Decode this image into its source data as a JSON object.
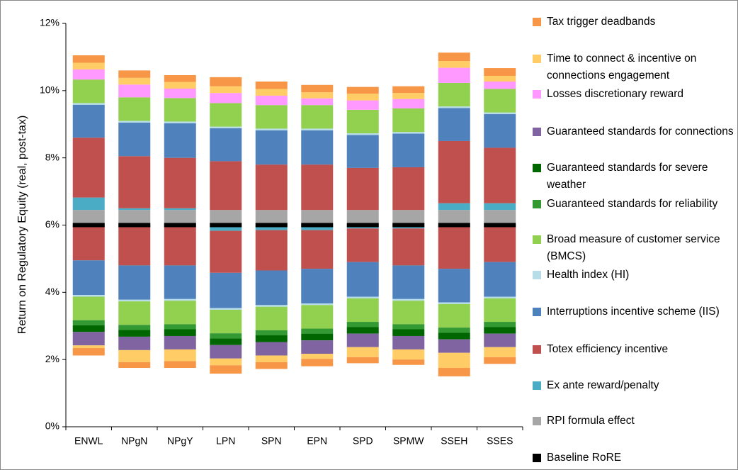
{
  "chart_data": {
    "type": "bar",
    "y_axis_title": "Return on Regulatory Equity (real, post-tax)",
    "categories": [
      "ENWL",
      "NPgN",
      "NPgY",
      "LPN",
      "SPN",
      "EPN",
      "SPD",
      "SPMW",
      "SSEH",
      "SSES"
    ],
    "ylim": [
      0,
      12
    ],
    "yticks": [
      {
        "value": 0,
        "label": "0%"
      },
      {
        "value": 2,
        "label": "2%"
      },
      {
        "value": 4,
        "label": "4%"
      },
      {
        "value": 6,
        "label": "6%"
      },
      {
        "value": 8,
        "label": "8%"
      },
      {
        "value": 10,
        "label": "10%"
      },
      {
        "value": 12,
        "label": "12%"
      }
    ],
    "series": [
      {
        "name": "Baseline RoRE",
        "color": "#000000",
        "values": [
          6,
          6,
          6,
          6,
          6,
          6,
          6,
          6,
          6,
          6
        ]
      },
      {
        "name": "RPI formula effect",
        "color": "#a6a6a6",
        "values": [
          0.45,
          0.45,
          0.45,
          0.45,
          0.45,
          0.45,
          0.45,
          0.45,
          0.45,
          0.45
        ],
        "downside": [
          0,
          0,
          0,
          0,
          0,
          0,
          0,
          0,
          0,
          0
        ]
      },
      {
        "name": "Ex ante reward/penalty",
        "color": "#4bacc6",
        "values": [
          0.37,
          0.05,
          0.05,
          0,
          0,
          0,
          0,
          0,
          0.2,
          0.2
        ],
        "downside": [
          0,
          0,
          0,
          -0.17,
          -0.15,
          -0.15,
          -0.1,
          -0.1,
          0,
          0
        ]
      },
      {
        "name": "Totex efficiency incentive",
        "color": "#c0504d",
        "values": [
          1.78,
          1.55,
          1.5,
          1.45,
          1.35,
          1.35,
          1.25,
          1.27,
          1.85,
          1.65
        ],
        "downside": [
          -1.05,
          -1.2,
          -1.2,
          -1.25,
          -1.2,
          -1.15,
          -1.0,
          -1.1,
          -1.3,
          -1.1
        ]
      },
      {
        "name": "Interruptions incentive scheme (IIS)",
        "color": "#4f81bd",
        "values": [
          0.98,
          1.0,
          1.03,
          0.98,
          1.02,
          1.02,
          0.98,
          1.0,
          0.98,
          1.0
        ],
        "downside": [
          -1.03,
          -1.02,
          -1.0,
          -1.05,
          -1.03,
          -1.03,
          -1.03,
          -1.0,
          -1.0,
          -1.03
        ]
      },
      {
        "name": "Health index (HI)",
        "color": "#b7dde8",
        "values": [
          0.05,
          0.05,
          0.05,
          0.05,
          0.05,
          0.05,
          0.05,
          0.05,
          0.05,
          0.05
        ],
        "downside": [
          -0.05,
          -0.05,
          -0.05,
          -0.05,
          -0.05,
          -0.05,
          -0.05,
          -0.05,
          -0.05,
          -0.05
        ]
      },
      {
        "name": "Broad measure of customer service (BMCS)",
        "color": "#92d050",
        "values": [
          0.7,
          0.7,
          0.7,
          0.7,
          0.7,
          0.7,
          0.7,
          0.7,
          0.7,
          0.7
        ],
        "downside": [
          -0.7,
          -0.7,
          -0.7,
          -0.7,
          -0.7,
          -0.7,
          -0.7,
          -0.7,
          -0.7,
          -0.7
        ]
      },
      {
        "name": "Guaranteed standards for reliability",
        "color": "#339933",
        "values": [
          0,
          0,
          0,
          0,
          0,
          0,
          0,
          0,
          0,
          0
        ],
        "downside": [
          -0.15,
          -0.15,
          -0.15,
          -0.15,
          -0.15,
          -0.15,
          -0.15,
          -0.15,
          -0.15,
          -0.15
        ]
      },
      {
        "name": "Guaranteed standards for severe weather",
        "color": "#006600",
        "values": [
          0,
          0,
          0,
          0,
          0,
          0,
          0,
          0,
          0,
          0
        ],
        "downside": [
          -0.2,
          -0.2,
          -0.2,
          -0.2,
          -0.2,
          -0.2,
          -0.2,
          -0.2,
          -0.2,
          -0.2
        ]
      },
      {
        "name": "Guaranteed standards for connections",
        "color": "#8064a2",
        "values": [
          0,
          0,
          0,
          0,
          0,
          0,
          0,
          0,
          0,
          0
        ],
        "downside": [
          -0.4,
          -0.4,
          -0.4,
          -0.4,
          -0.4,
          -0.4,
          -0.4,
          -0.4,
          -0.4,
          -0.4
        ]
      },
      {
        "name": "Losses discretionary reward",
        "color": "#ff99ff",
        "values": [
          0.3,
          0.38,
          0.28,
          0.3,
          0.28,
          0.2,
          0.28,
          0.28,
          0.45,
          0.22
        ],
        "downside": [
          0,
          0,
          0,
          0,
          0,
          0,
          0,
          0,
          0,
          0
        ]
      },
      {
        "name": "Time to connect & incentive on connections engagement",
        "color": "#ffcc66",
        "values": [
          0.2,
          0.2,
          0.2,
          0.2,
          0.2,
          0.18,
          0.2,
          0.18,
          0.2,
          0.17
        ],
        "downside": [
          -0.08,
          -0.36,
          -0.35,
          -0.2,
          -0.2,
          -0.15,
          -0.3,
          -0.3,
          -0.45,
          -0.3
        ]
      },
      {
        "name": "Tax trigger deadbands",
        "color": "#f79646",
        "values": [
          0.22,
          0.22,
          0.2,
          0.27,
          0.22,
          0.22,
          0.2,
          0.2,
          0.25,
          0.23
        ],
        "downside": [
          -0.22,
          -0.17,
          -0.2,
          -0.25,
          -0.2,
          -0.22,
          -0.18,
          -0.16,
          -0.25,
          -0.2
        ]
      }
    ]
  }
}
